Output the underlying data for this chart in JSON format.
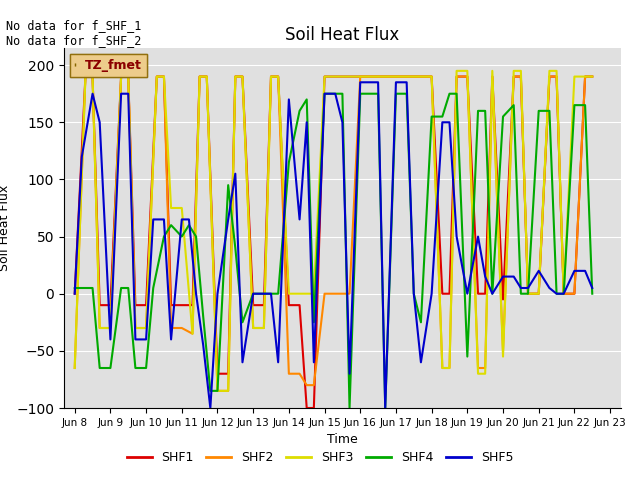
{
  "title": "Soil Heat Flux",
  "xlabel": "Time",
  "ylabel": "Soil Heat Flux",
  "ylim": [
    -100,
    215
  ],
  "yticks": [
    -100,
    -50,
    0,
    50,
    100,
    150,
    200
  ],
  "annotation_text": "No data for f_SHF_1\nNo data for f_SHF_2",
  "legend_label": "TZ_fmet",
  "bg_color": "#e0e0e0",
  "series": {
    "SHF1": {
      "color": "#dd0000",
      "x": [
        8.0,
        8.3,
        8.5,
        8.7,
        9.0,
        9.3,
        9.5,
        9.7,
        10.0,
        10.3,
        10.5,
        10.7,
        11.0,
        11.3,
        11.5,
        11.7,
        12.0,
        12.3,
        12.5,
        12.7,
        13.0,
        13.3,
        13.5,
        13.7,
        14.0,
        14.3,
        14.5,
        14.7,
        15.0,
        15.3,
        15.5,
        15.7,
        16.0,
        16.3,
        16.5,
        16.7,
        17.0,
        17.3,
        17.5,
        17.7,
        18.0,
        18.3,
        18.5,
        18.7,
        19.0,
        19.3,
        19.5,
        19.7,
        20.0,
        20.3,
        20.5,
        20.7,
        21.0,
        21.3,
        21.5,
        21.7,
        22.0,
        22.3,
        22.5
      ],
      "y": [
        0,
        190,
        190,
        -10,
        -10,
        190,
        190,
        -10,
        -10,
        190,
        190,
        -10,
        -10,
        -10,
        190,
        190,
        -70,
        -70,
        190,
        190,
        -10,
        -10,
        190,
        190,
        -10,
        -10,
        -100,
        -100,
        190,
        190,
        190,
        190,
        190,
        190,
        190,
        190,
        190,
        190,
        190,
        190,
        190,
        0,
        0,
        190,
        190,
        0,
        0,
        190,
        -5,
        190,
        190,
        0,
        0,
        190,
        190,
        0,
        0,
        190,
        190
      ]
    },
    "SHF2": {
      "color": "#ff8800",
      "x": [
        8.0,
        8.3,
        8.5,
        8.7,
        9.0,
        9.3,
        9.5,
        9.7,
        10.0,
        10.3,
        10.5,
        10.7,
        11.0,
        11.3,
        11.5,
        11.7,
        12.0,
        12.3,
        12.5,
        12.7,
        13.0,
        13.3,
        13.5,
        13.7,
        14.0,
        14.3,
        14.5,
        14.7,
        15.0,
        15.3,
        15.5,
        15.7,
        16.0,
        16.3,
        16.5,
        16.7,
        17.0,
        17.3,
        17.5,
        17.7,
        18.0,
        18.3,
        18.5,
        18.7,
        19.0,
        19.3,
        19.5,
        19.7,
        20.0,
        20.3,
        20.5,
        20.7,
        21.0,
        21.3,
        21.5,
        21.7,
        22.0,
        22.3,
        22.5
      ],
      "y": [
        -65,
        190,
        190,
        -30,
        -30,
        190,
        190,
        -30,
        -30,
        190,
        190,
        -30,
        -30,
        -35,
        190,
        190,
        -85,
        -85,
        190,
        190,
        -30,
        -30,
        190,
        190,
        -70,
        -70,
        -80,
        -80,
        0,
        0,
        0,
        0,
        190,
        190,
        190,
        190,
        190,
        190,
        190,
        190,
        190,
        -65,
        -65,
        190,
        190,
        -65,
        -65,
        190,
        -50,
        190,
        190,
        0,
        0,
        190,
        190,
        0,
        0,
        190,
        190
      ]
    },
    "SHF3": {
      "color": "#dddd00",
      "x": [
        8.0,
        8.3,
        8.5,
        8.7,
        9.0,
        9.3,
        9.5,
        9.7,
        10.0,
        10.3,
        10.5,
        10.7,
        11.0,
        11.3,
        11.5,
        11.7,
        12.0,
        12.3,
        12.5,
        12.7,
        13.0,
        13.3,
        13.5,
        13.7,
        14.0,
        14.3,
        14.5,
        14.7,
        15.0,
        15.3,
        15.5,
        15.7,
        16.0,
        16.3,
        16.5,
        16.7,
        17.0,
        17.3,
        17.5,
        17.7,
        18.0,
        18.3,
        18.5,
        18.7,
        19.0,
        19.3,
        19.5,
        19.7,
        20.0,
        20.3,
        20.5,
        20.7,
        21.0,
        21.3,
        21.5,
        21.7,
        22.0,
        22.3,
        22.5
      ],
      "y": [
        -65,
        190,
        190,
        -30,
        -30,
        190,
        190,
        -30,
        -30,
        190,
        190,
        75,
        75,
        -35,
        190,
        190,
        -85,
        -85,
        190,
        190,
        -30,
        -30,
        190,
        190,
        0,
        0,
        0,
        0,
        190,
        190,
        190,
        190,
        190,
        190,
        190,
        190,
        190,
        190,
        190,
        190,
        190,
        -65,
        -65,
        195,
        195,
        -70,
        -70,
        195,
        -55,
        195,
        195,
        0,
        0,
        195,
        195,
        0,
        190,
        190,
        190
      ]
    },
    "SHF4": {
      "color": "#00aa00",
      "x": [
        8.0,
        8.2,
        8.5,
        8.7,
        9.0,
        9.3,
        9.5,
        9.7,
        10.0,
        10.2,
        10.5,
        10.7,
        11.0,
        11.2,
        11.4,
        11.6,
        11.8,
        12.0,
        12.3,
        12.5,
        12.7,
        13.0,
        13.3,
        13.5,
        13.7,
        14.0,
        14.3,
        14.5,
        14.7,
        15.0,
        15.3,
        15.5,
        15.7,
        16.0,
        16.3,
        16.5,
        16.7,
        17.0,
        17.3,
        17.5,
        17.7,
        18.0,
        18.3,
        18.5,
        18.7,
        19.0,
        19.3,
        19.5,
        19.7,
        20.0,
        20.3,
        20.5,
        20.7,
        21.0,
        21.3,
        21.5,
        21.7,
        22.0,
        22.3,
        22.5
      ],
      "y": [
        5,
        5,
        5,
        -65,
        -65,
        5,
        5,
        -65,
        -65,
        5,
        50,
        60,
        50,
        60,
        50,
        -20,
        -85,
        -85,
        95,
        40,
        -25,
        0,
        0,
        0,
        0,
        115,
        160,
        170,
        -25,
        175,
        175,
        175,
        -100,
        175,
        175,
        175,
        -100,
        175,
        175,
        0,
        -25,
        155,
        155,
        175,
        175,
        -55,
        160,
        160,
        0,
        155,
        165,
        0,
        0,
        160,
        160,
        0,
        0,
        165,
        165,
        0
      ]
    },
    "SHF5": {
      "color": "#0000cc",
      "x": [
        8.0,
        8.2,
        8.5,
        8.7,
        9.0,
        9.3,
        9.5,
        9.7,
        10.0,
        10.2,
        10.5,
        10.7,
        11.0,
        11.2,
        11.4,
        11.6,
        11.8,
        12.0,
        12.3,
        12.5,
        12.7,
        13.0,
        13.3,
        13.5,
        13.7,
        14.0,
        14.3,
        14.5,
        14.7,
        15.0,
        15.3,
        15.5,
        15.7,
        16.0,
        16.3,
        16.5,
        16.7,
        17.0,
        17.3,
        17.5,
        17.7,
        18.0,
        18.3,
        18.5,
        18.7,
        19.0,
        19.3,
        19.5,
        19.7,
        20.0,
        20.3,
        20.5,
        20.7,
        21.0,
        21.3,
        21.5,
        21.7,
        22.0,
        22.3,
        22.5
      ],
      "y": [
        0,
        120,
        175,
        150,
        -40,
        175,
        175,
        -40,
        -40,
        65,
        65,
        -40,
        65,
        65,
        0,
        -45,
        -100,
        0,
        65,
        105,
        -60,
        0,
        0,
        0,
        -60,
        170,
        65,
        150,
        -60,
        175,
        175,
        150,
        -70,
        185,
        185,
        185,
        -100,
        185,
        185,
        0,
        -60,
        0,
        150,
        150,
        50,
        0,
        50,
        15,
        0,
        15,
        15,
        5,
        5,
        20,
        5,
        0,
        0,
        20,
        20,
        5
      ]
    }
  },
  "xtick_positions": [
    8,
    9,
    10,
    11,
    12,
    13,
    14,
    15,
    16,
    17,
    18,
    19,
    20,
    21,
    22,
    23
  ],
  "xtick_labels": [
    "Jun 8",
    "Jun 9",
    "Jun 10",
    "Jun 11",
    "Jun 12",
    "Jun 13",
    "Jun 14",
    "Jun 15",
    "Jun 16",
    "Jun 17",
    "Jun 18",
    "Jun 19",
    "Jun 20",
    "Jun 21",
    "Jun 22",
    "Jun 23"
  ]
}
